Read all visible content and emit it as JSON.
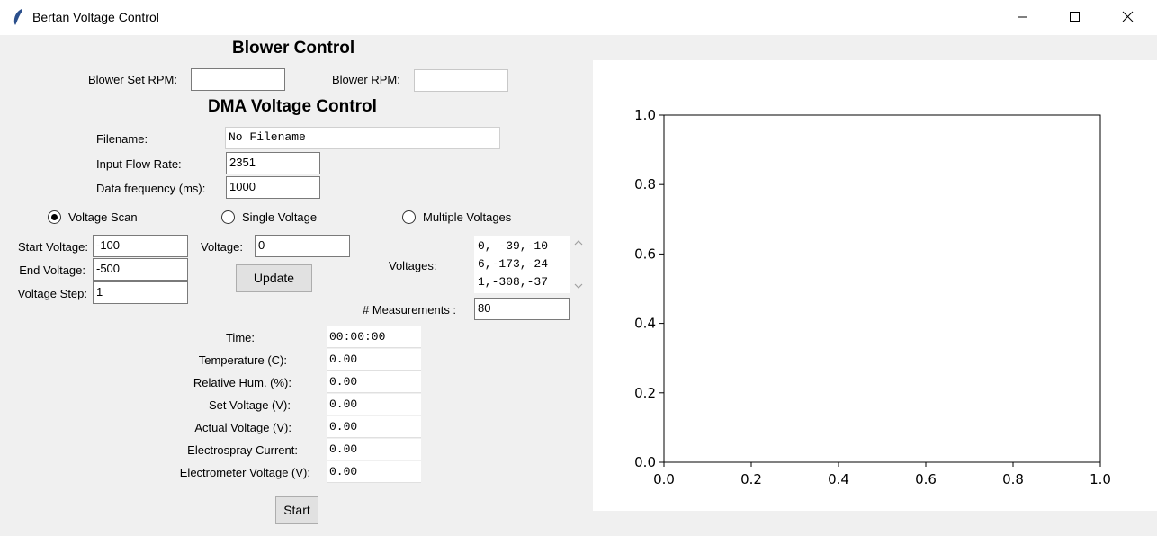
{
  "window": {
    "title": "Bertan Voltage Control"
  },
  "blower": {
    "heading": "Blower Control",
    "set_rpm_label": "Blower Set RPM:",
    "set_rpm_value": "",
    "rpm_label": "Blower RPM:",
    "rpm_value": ""
  },
  "dma": {
    "heading": "DMA Voltage Control",
    "filename_label": "Filename:",
    "filename_value": "No Filename",
    "flow_label": "Input Flow Rate:",
    "flow_value": "2351",
    "freq_label": "Data frequency (ms):",
    "freq_value": "1000"
  },
  "modes": {
    "scan_label": "Voltage Scan",
    "single_label": "Single Voltage",
    "multiple_label": "Multiple Voltages",
    "selected": "scan"
  },
  "scan": {
    "start_label": "Start Voltage:",
    "start_value": "-100",
    "end_label": "End Voltage:",
    "end_value": "-500",
    "step_label": "Voltage Step:",
    "step_value": "1"
  },
  "single": {
    "voltage_label": "Voltage:",
    "voltage_value": "0",
    "update_label": "Update"
  },
  "multiple": {
    "voltages_label": "Voltages:",
    "voltages_lines": [
      "0, -39,-10",
      "6,-173,-24",
      "1,-308,-37"
    ],
    "measurements_label": "# Measurements :",
    "measurements_value": "80"
  },
  "readouts": [
    {
      "label": "Time:",
      "value": "00:00:00"
    },
    {
      "label": "Temperature (C):",
      "value": "0.00"
    },
    {
      "label": "Relative Hum. (%):",
      "value": "0.00"
    },
    {
      "label": "Set Voltage (V):",
      "value": "0.00"
    },
    {
      "label": "Actual Voltage (V):",
      "value": "0.00"
    },
    {
      "label": "Electrospray Current:",
      "value": "0.00"
    },
    {
      "label": "Electrometer Voltage (V):",
      "value": "0.00"
    }
  ],
  "start_label": "Start",
  "chart_data": {
    "type": "line",
    "series": [],
    "xlim": [
      0.0,
      1.0
    ],
    "ylim": [
      0.0,
      1.0
    ],
    "xticks": [
      "0.0",
      "0.2",
      "0.4",
      "0.6",
      "0.8",
      "1.0"
    ],
    "yticks": [
      "0.0",
      "0.2",
      "0.4",
      "0.6",
      "0.8",
      "1.0"
    ],
    "grid": false
  }
}
